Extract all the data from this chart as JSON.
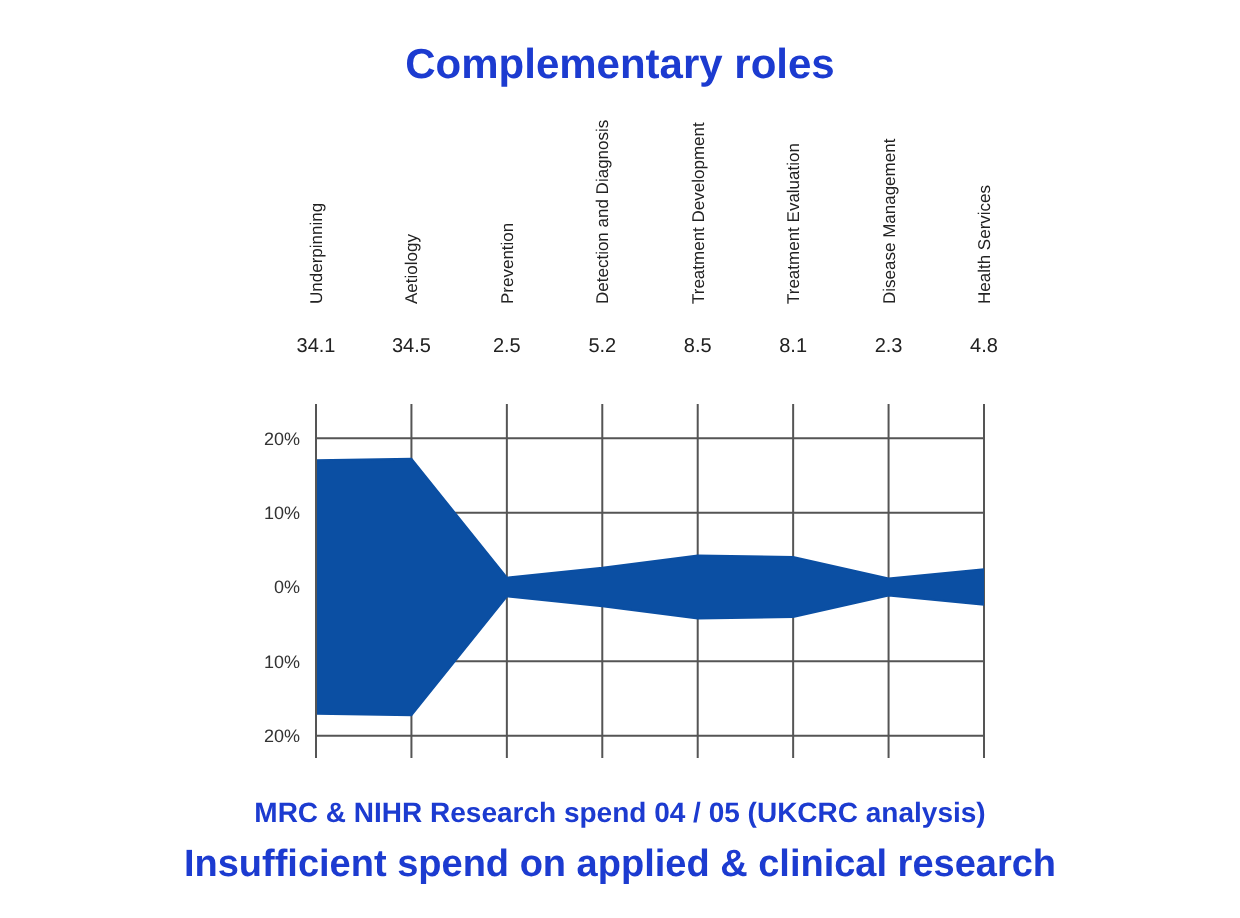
{
  "chart_data": {
    "type": "area",
    "title": "Complementary roles",
    "categories": [
      "Underpinning",
      "Aetiology",
      "Prevention",
      "Detection and Diagnosis",
      "Treatment Development",
      "Treatment Evaluation",
      "Disease Management",
      "Health Services"
    ],
    "series": [
      {
        "color": "#0b4fa3",
        "values": [
          17.05,
          17.25,
          1.25,
          2.6,
          4.25,
          4.05,
          1.15,
          2.4
        ]
      },
      {
        "color": "#0b4fa3",
        "values": [
          -17.05,
          -17.25,
          -1.25,
          -2.6,
          -4.25,
          -4.05,
          -1.15,
          -2.4
        ]
      }
    ],
    "ylim": [
      -23,
      23
    ],
    "yticks": [
      {
        "value": 20,
        "label": "20%"
      },
      {
        "value": 10,
        "label": "10%"
      },
      {
        "value": 0,
        "label": "0%"
      },
      {
        "value": -10,
        "label": "10%"
      },
      {
        "value": -20,
        "label": "20%"
      }
    ],
    "grid": true,
    "annotations": [
      "34.1",
      "34.5",
      "2.5",
      "5.2",
      "8.5",
      "8.1",
      "2.3",
      "4.8",
      "MRC & NIHR Research spend 04 / 05 (UKCRC analysis)",
      "Insufficient spend on applied & clinical research"
    ]
  }
}
